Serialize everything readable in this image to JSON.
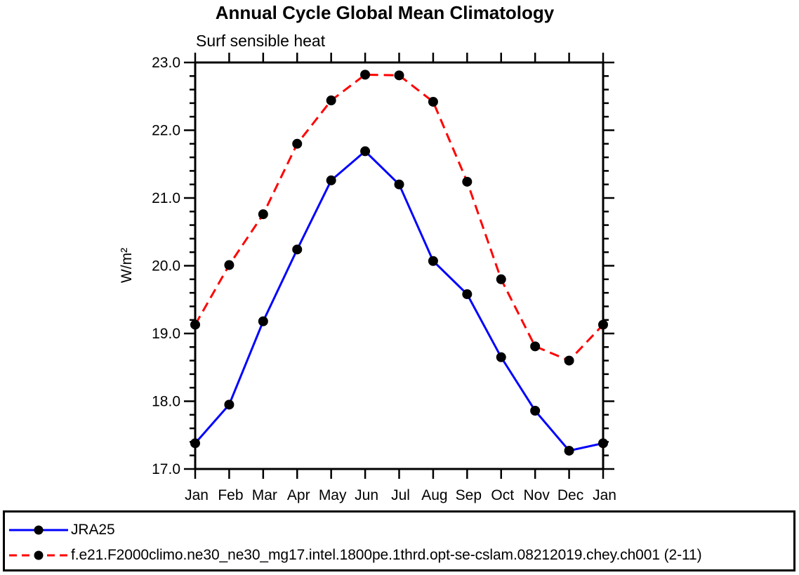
{
  "title": "Annual Cycle Global Mean Climatology",
  "subtitle": "Surf sensible heat",
  "chart_data": {
    "type": "line",
    "categories": [
      "Jan",
      "Feb",
      "Mar",
      "Apr",
      "May",
      "Jun",
      "Jul",
      "Aug",
      "Sep",
      "Oct",
      "Nov",
      "Dec",
      "Jan"
    ],
    "series": [
      {
        "name": "JRA25",
        "color": "#0000ff",
        "line_style": "solid",
        "marker": "filled-circle",
        "values": [
          17.38,
          17.95,
          19.18,
          20.24,
          21.26,
          21.69,
          21.2,
          20.07,
          19.58,
          18.65,
          17.86,
          17.27,
          17.38
        ]
      },
      {
        "name": "f.e21.F2000climo.ne30_ne30_mg17.intel.1800pe.1thrd.opt-se-cslam.08212019.chey.ch001 (2-11)",
        "color": "#ff0000",
        "line_style": "dashed",
        "marker": "filled-circle",
        "values": [
          19.13,
          20.01,
          20.76,
          21.8,
          22.44,
          22.82,
          22.81,
          22.42,
          21.24,
          19.8,
          18.81,
          18.6,
          19.13
        ]
      }
    ],
    "xlabel": "",
    "ylabel": "W/m²",
    "ylim": [
      17.0,
      23.0
    ],
    "ytick_labels": [
      "17.0",
      "18.0",
      "19.0",
      "20.0",
      "21.0",
      "22.0",
      "23.0"
    ],
    "ytick_step": 1.0,
    "ytick_minor_step": 0.2,
    "grid": false,
    "marker_color": "#000000",
    "axis_color": "#000000",
    "legend_position": "bottom"
  }
}
